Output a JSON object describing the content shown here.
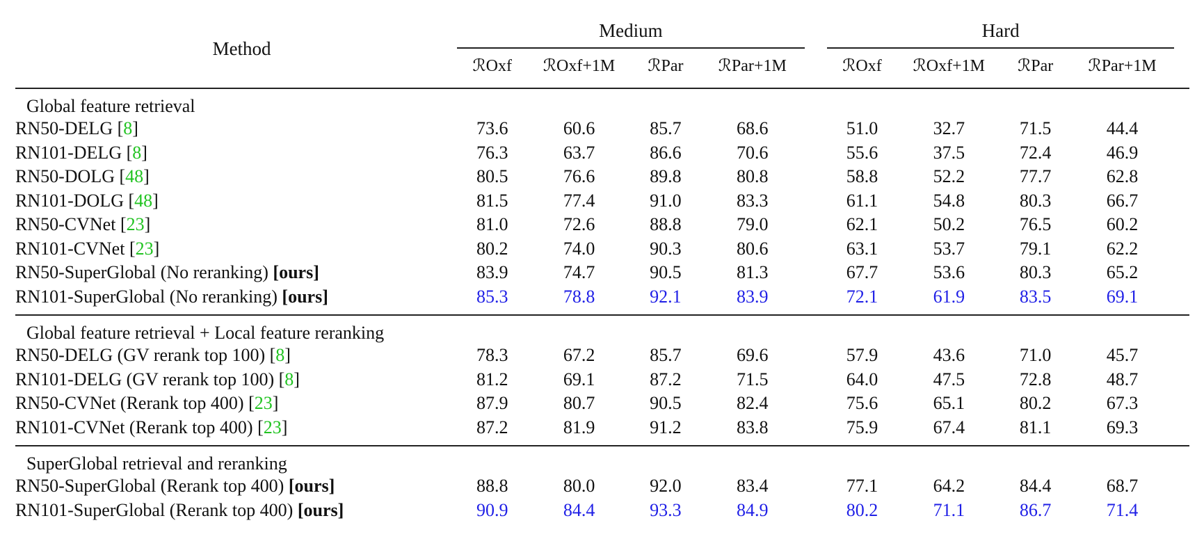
{
  "header": {
    "method_label": "Method",
    "groups": [
      "Medium",
      "Hard"
    ],
    "columns": [
      "ℛOxf",
      "ℛOxf+1M",
      "ℛPar",
      "ℛPar+1M",
      "ℛOxf",
      "ℛOxf+1M",
      "ℛPar",
      "ℛPar+1M"
    ]
  },
  "sections": [
    {
      "title": "Global feature retrieval",
      "rows": [
        {
          "name": "RN50-DELG",
          "ref": "8",
          "ours": "",
          "values": [
            "73.6",
            "60.6",
            "85.7",
            "68.6",
            "51.0",
            "32.7",
            "71.5",
            "44.4"
          ],
          "styles": [
            "",
            "",
            "",
            "",
            "",
            "",
            "",
            ""
          ]
        },
        {
          "name": "RN101-DELG",
          "ref": "8",
          "ours": "",
          "values": [
            "76.3",
            "63.7",
            "86.6",
            "70.6",
            "55.6",
            "37.5",
            "72.4",
            "46.9"
          ],
          "styles": [
            "",
            "",
            "",
            "",
            "",
            "",
            "",
            ""
          ]
        },
        {
          "name": "RN50-DOLG",
          "ref": "48",
          "ours": "",
          "values": [
            "80.5",
            "76.6",
            "89.8",
            "80.8",
            "58.8",
            "52.2",
            "77.7",
            "62.8"
          ],
          "styles": [
            "",
            "bold",
            "",
            "",
            "",
            "",
            "",
            ""
          ]
        },
        {
          "name": "RN101-DOLG",
          "ref": "48",
          "ours": "",
          "values": [
            "81.5",
            "77.4",
            "91.0",
            "83.3",
            "61.1",
            "54.8",
            "80.3",
            "66.7"
          ],
          "styles": [
            "",
            "",
            "",
            "",
            "",
            "",
            "",
            ""
          ]
        },
        {
          "name": "RN50-CVNet",
          "ref": "23",
          "ours": "",
          "values": [
            "81.0",
            "72.6",
            "88.8",
            "79.0",
            "62.1",
            "50.2",
            "76.5",
            "60.2"
          ],
          "styles": [
            "",
            "",
            "",
            "",
            "",
            "",
            "",
            ""
          ]
        },
        {
          "name": "RN101-CVNet",
          "ref": "23",
          "ours": "",
          "values": [
            "80.2",
            "74.0",
            "90.3",
            "80.6",
            "63.1",
            "53.7",
            "79.1",
            "62.2"
          ],
          "styles": [
            "",
            "",
            "",
            "",
            "",
            "",
            "",
            ""
          ]
        },
        {
          "name": "RN50-SuperGlobal (No reranking)",
          "ref": "",
          "ours": "[ours]",
          "values": [
            "83.9",
            "74.7",
            "90.5",
            "81.3",
            "67.7",
            "53.6",
            "80.3",
            "65.2"
          ],
          "styles": [
            "bold",
            "",
            "bold",
            "bold",
            "bold",
            "bold",
            "bold",
            "bold"
          ]
        },
        {
          "name": "RN101-SuperGlobal (No reranking)",
          "ref": "",
          "ours": "[ours]",
          "values": [
            "85.3",
            "78.8",
            "92.1",
            "83.9",
            "72.1",
            "61.9",
            "83.5",
            "69.1"
          ],
          "styles": [
            "best",
            "best",
            "best",
            "best",
            "best",
            "best",
            "best",
            "best"
          ]
        }
      ]
    },
    {
      "title": "Global feature retrieval + Local feature reranking",
      "rows": [
        {
          "name": "RN50-DELG (GV rerank top 100)",
          "ref": "8",
          "ours": "",
          "values": [
            "78.3",
            "67.2",
            "85.7",
            "69.6",
            "57.9",
            "43.6",
            "71.0",
            "45.7"
          ],
          "styles": [
            "",
            "",
            "",
            "",
            "",
            "",
            "",
            ""
          ]
        },
        {
          "name": "RN101-DELG (GV rerank top 100)",
          "ref": "8",
          "ours": "",
          "values": [
            "81.2",
            "69.1",
            "87.2",
            "71.5",
            "64.0",
            "47.5",
            "72.8",
            "48.7"
          ],
          "styles": [
            "",
            "",
            "",
            "",
            "",
            "",
            "",
            ""
          ]
        },
        {
          "name": "RN50-CVNet (Rerank top 400)",
          "ref": "23",
          "ours": "",
          "values": [
            "87.9",
            "80.7",
            "90.5",
            "82.4",
            "75.6",
            "65.1",
            "80.2",
            "67.3"
          ],
          "styles": [
            "",
            "bold",
            "",
            "",
            "",
            "bold",
            "",
            ""
          ]
        },
        {
          "name": "RN101-CVNet (Rerank top 400)",
          "ref": "23",
          "ours": "",
          "values": [
            "87.2",
            "81.9",
            "91.2",
            "83.8",
            "75.9",
            "67.4",
            "81.1",
            "69.3"
          ],
          "styles": [
            "",
            "",
            "",
            "",
            "",
            "",
            "",
            ""
          ]
        }
      ]
    },
    {
      "title": "SuperGlobal retrieval and reranking",
      "rows": [
        {
          "name": "RN50-SuperGlobal (Rerank top 400)",
          "ref": "",
          "ours": "[ours]",
          "values": [
            "88.8",
            "80.0",
            "92.0",
            "83.4",
            "77.1",
            "64.2",
            "84.4",
            "68.7"
          ],
          "styles": [
            "bold",
            "",
            "bold",
            "bold",
            "bold",
            "",
            "bold",
            "bold"
          ]
        },
        {
          "name": "RN101-SuperGlobal (Rerank top 400)",
          "ref": "",
          "ours": "[ours]",
          "values": [
            "90.9",
            "84.4",
            "93.3",
            "84.9",
            "80.2",
            "71.1",
            "86.7",
            "71.4"
          ],
          "styles": [
            "best",
            "best",
            "best",
            "best",
            "best",
            "best",
            "best",
            "best"
          ]
        }
      ]
    }
  ]
}
